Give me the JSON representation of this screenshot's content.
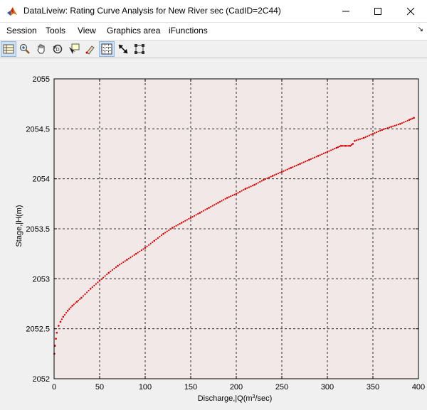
{
  "window": {
    "title": "DataLiveiw: Rating Curve Analysis for New River sec (CadID=2C44)"
  },
  "menu": {
    "items": [
      "Session",
      "Tools",
      "View",
      "Graphics area",
      "iFunctions"
    ]
  },
  "toolbar": {
    "icons": [
      "data-table-icon",
      "zoom-in-icon",
      "pan-hand-icon",
      "rotate-3d-icon",
      "data-cursor-icon",
      "brush-icon",
      "grid-icon",
      "arrow-icon",
      "selection-box-icon"
    ],
    "active": [
      "data-table-icon",
      "grid-icon"
    ]
  },
  "chart_data": {
    "type": "scatter",
    "xlabel": "Discharge,|Q(m",
    "xlabel_sup": "3",
    "xlabel_tail": "/sec)",
    "ylabel": "Stage,|H(m)",
    "xlim": [
      0,
      400
    ],
    "ylim": [
      2052,
      2055
    ],
    "xticks": [
      "0",
      "50",
      "100",
      "150",
      "200",
      "250",
      "300",
      "350",
      "400"
    ],
    "yticks": [
      "2052",
      "2052.5",
      "2053",
      "2053.5",
      "2054",
      "2054.5",
      "2055"
    ],
    "grid": true,
    "marker_color": "#cc0000",
    "plot_bg": "#f3e8e8",
    "series": [
      {
        "x": [
          0.3,
          1,
          2,
          3,
          5,
          7,
          10,
          15,
          20,
          25,
          30,
          40,
          50,
          60,
          70,
          80,
          90,
          100,
          110,
          120,
          130,
          140,
          150,
          160,
          170,
          180,
          190,
          200,
          210,
          220,
          230,
          240,
          250,
          260,
          270,
          280,
          290,
          300,
          310,
          315,
          320,
          325,
          328,
          330,
          340,
          350,
          360,
          370,
          380,
          390,
          395
        ],
        "y": [
          2052.25,
          2052.33,
          2052.4,
          2052.46,
          2052.53,
          2052.57,
          2052.62,
          2052.68,
          2052.73,
          2052.77,
          2052.81,
          2052.9,
          2052.98,
          2053.06,
          2053.13,
          2053.19,
          2053.25,
          2053.31,
          2053.38,
          2053.45,
          2053.51,
          2053.56,
          2053.61,
          2053.66,
          2053.71,
          2053.76,
          2053.81,
          2053.85,
          2053.9,
          2053.94,
          2053.99,
          2054.03,
          2054.07,
          2054.11,
          2054.15,
          2054.19,
          2054.23,
          2054.27,
          2054.31,
          2054.33,
          2054.33,
          2054.33,
          2054.35,
          2054.38,
          2054.41,
          2054.45,
          2054.49,
          2054.52,
          2054.55,
          2054.59,
          2054.61
        ]
      }
    ]
  }
}
